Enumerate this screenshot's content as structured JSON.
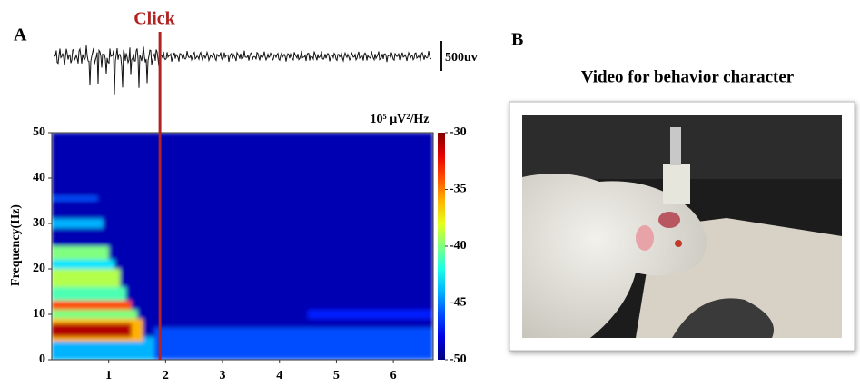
{
  "panel_a": {
    "label": "A",
    "click_label": "Click",
    "scale_label": "500uv",
    "chart_data": {
      "type": "heatmap",
      "ylabel": "Frequency(Hz)",
      "colorbar_label": "10⁵ μV²/Hz",
      "xlim": [
        0,
        6.7
      ],
      "xticks": [
        1,
        2,
        3,
        4,
        5,
        6
      ],
      "ylim": [
        0,
        50
      ],
      "yticks": [
        0,
        10,
        20,
        30,
        40,
        50
      ],
      "clim": [
        -50,
        -30
      ],
      "cticks": [
        -30,
        -35,
        -40,
        -45,
        -50
      ],
      "click_time": 1.9,
      "cells": [
        {
          "f": [
            0,
            50
          ],
          "t": [
            0,
            6.7
          ],
          "power": -49
        },
        {
          "f": [
            0,
            7
          ],
          "t": [
            1.8,
            6.7
          ],
          "power": -46
        },
        {
          "f": [
            9,
            11
          ],
          "t": [
            4.5,
            6.7
          ],
          "power": -47
        },
        {
          "f": [
            0,
            5
          ],
          "t": [
            0,
            1.8
          ],
          "power": -44
        },
        {
          "f": [
            4,
            9
          ],
          "t": [
            0,
            1.6
          ],
          "power": -36
        },
        {
          "f": [
            5,
            8
          ],
          "t": [
            0,
            1.4
          ],
          "power": -31
        },
        {
          "f": [
            9,
            11
          ],
          "t": [
            0,
            1.5
          ],
          "power": -40
        },
        {
          "f": [
            11,
            13
          ],
          "t": [
            0,
            1.4
          ],
          "power": -34
        },
        {
          "f": [
            13,
            16
          ],
          "t": [
            0,
            1.3
          ],
          "power": -41
        },
        {
          "f": [
            16,
            20
          ],
          "t": [
            0,
            1.2
          ],
          "power": -39
        },
        {
          "f": [
            20,
            22
          ],
          "t": [
            0,
            1.1
          ],
          "power": -43
        },
        {
          "f": [
            22,
            25
          ],
          "t": [
            0,
            1.0
          ],
          "power": -40
        },
        {
          "f": [
            29,
            31
          ],
          "t": [
            0,
            0.9
          ],
          "power": -44
        },
        {
          "f": [
            35,
            36
          ],
          "t": [
            0,
            0.8
          ],
          "power": -46
        }
      ]
    }
  },
  "panel_b": {
    "label": "B",
    "title": "Video for behavior character"
  }
}
